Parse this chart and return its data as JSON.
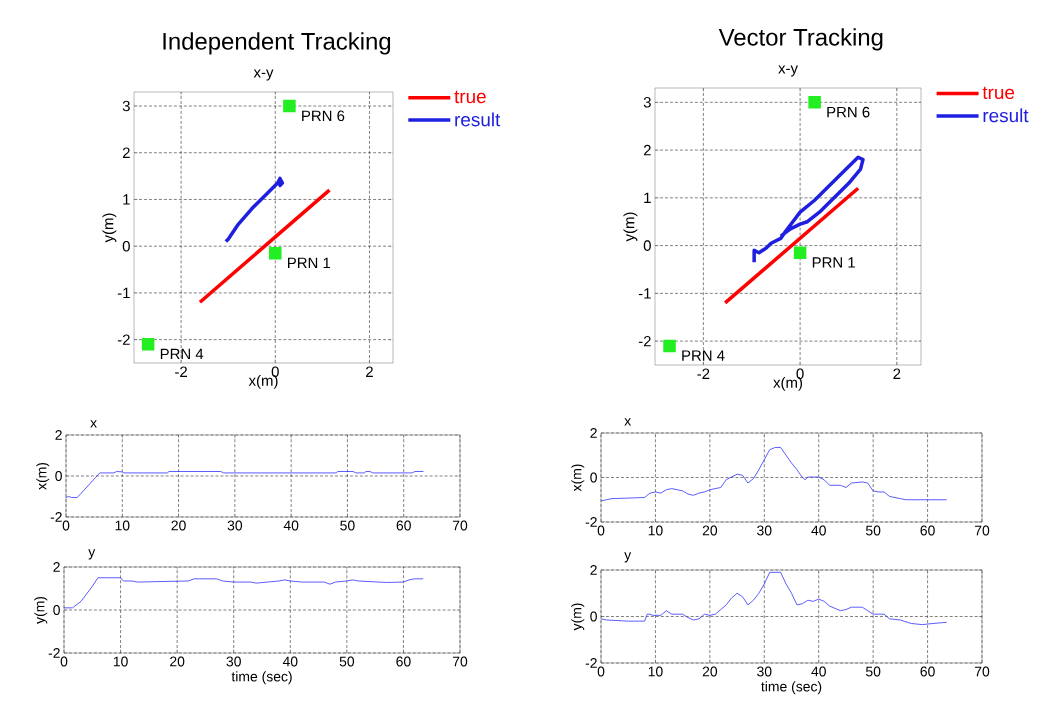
{
  "chart_data": [
    {
      "type": "line",
      "title": "Independent Tracking",
      "subtitle": "x-y",
      "xlabel": "x(m)",
      "ylabel": "y(m)",
      "xlim": [
        -3,
        2.5
      ],
      "ylim": [
        -2.5,
        3.3
      ],
      "xticks": [
        -2,
        0,
        2
      ],
      "yticks": [
        -2,
        -1,
        0,
        1,
        2,
        3
      ],
      "grid": true,
      "legend": "top right",
      "series": [
        {
          "name": "true",
          "type": "line",
          "color": "#ff0000",
          "x": [
            -1.6,
            1.15
          ],
          "values": [
            -1.2,
            1.2
          ]
        },
        {
          "name": "result",
          "type": "line",
          "color": "#1f1fe0",
          "x": [
            -1.05,
            -1.0,
            -0.8,
            -0.5,
            -0.2,
            0.05,
            0.1,
            0.15,
            0.1,
            0.15
          ],
          "values": [
            0.1,
            0.15,
            0.45,
            0.8,
            1.1,
            1.35,
            1.45,
            1.35,
            1.3,
            1.4
          ]
        },
        {
          "type": "scatter",
          "marker": "square",
          "color": "#22ee22",
          "x": [
            0.3,
            0,
            -2.7
          ],
          "values": [
            3.0,
            -0.15,
            -2.1
          ]
        }
      ],
      "annotations": [
        {
          "text": "PRN 6",
          "x": 0.3,
          "y": 3.0
        },
        {
          "text": "PRN 1",
          "x": 0,
          "y": -0.15
        },
        {
          "text": "PRN 4",
          "x": -2.7,
          "y": -2.1
        }
      ]
    },
    {
      "type": "line",
      "title": "Vector Tracking",
      "subtitle": "x-y",
      "xlabel": "x(m)",
      "ylabel": "y(m)",
      "xlim": [
        -3,
        2.5
      ],
      "ylim": [
        -2.5,
        3.3
      ],
      "xticks": [
        -2,
        0,
        2
      ],
      "yticks": [
        -2,
        -1,
        0,
        1,
        2,
        3
      ],
      "grid": true,
      "legend": "top right",
      "series": [
        {
          "name": "true",
          "type": "line",
          "color": "#ff0000",
          "x": [
            -1.55,
            1.2
          ],
          "values": [
            -1.2,
            1.2
          ]
        },
        {
          "name": "result",
          "type": "line",
          "color": "#1f1fe0",
          "x": [
            -0.95,
            -0.95,
            -0.85,
            -0.7,
            -0.6,
            -0.4,
            -0.3,
            -0.15,
            0,
            0.3,
            0.6,
            0.9,
            1.2,
            1.3,
            1.25,
            1.0,
            0.7,
            0.4,
            0.15,
            0,
            -0.2,
            -0.4
          ],
          "values": [
            -0.35,
            -0.1,
            -0.15,
            -0.05,
            0.05,
            0.15,
            0.3,
            0.5,
            0.7,
            0.95,
            1.25,
            1.55,
            1.85,
            1.8,
            1.6,
            1.3,
            1.0,
            0.7,
            0.5,
            0.45,
            0.35,
            0.2
          ]
        },
        {
          "type": "scatter",
          "marker": "square",
          "color": "#22ee22",
          "x": [
            0.3,
            0,
            -2.7
          ],
          "values": [
            3.0,
            -0.15,
            -2.1
          ]
        }
      ],
      "annotations": [
        {
          "text": "PRN 6",
          "x": 0.3,
          "y": 3.0
        },
        {
          "text": "PRN 1",
          "x": 0,
          "y": -0.15
        },
        {
          "text": "PRN 4",
          "x": -2.7,
          "y": -2.1
        }
      ]
    },
    {
      "type": "line",
      "title": "x",
      "ylabel": "x(m)",
      "xlim": [
        0,
        70
      ],
      "ylim": [
        -2,
        2
      ],
      "xticks": [
        0,
        10,
        20,
        30,
        40,
        50,
        60,
        70
      ],
      "yticks": [
        -2,
        0,
        2
      ],
      "grid": true,
      "color": "#3333ff",
      "x": [
        0,
        0.5,
        1,
        2,
        5.5,
        6,
        8.5,
        9,
        10,
        10.3,
        18,
        18.3,
        27.5,
        28,
        48,
        48.3,
        51,
        51.5,
        53,
        53.3,
        54,
        54.5,
        61.5,
        62,
        63.5
      ],
      "values": [
        -1.05,
        -1.0,
        -1.05,
        -1.05,
        0,
        0.15,
        0.15,
        0.22,
        0.2,
        0.15,
        0.15,
        0.22,
        0.22,
        0.15,
        0.15,
        0.22,
        0.22,
        0.15,
        0.15,
        0.22,
        0.22,
        0.15,
        0.15,
        0.22,
        0.22
      ]
    },
    {
      "type": "line",
      "title": "x",
      "ylabel": "x(m)",
      "xlim": [
        0,
        70
      ],
      "ylim": [
        -2,
        2
      ],
      "xticks": [
        0,
        10,
        20,
        30,
        40,
        50,
        60,
        70
      ],
      "yticks": [
        -2,
        0,
        2
      ],
      "grid": true,
      "color": "#3333ff",
      "x": [
        0,
        1,
        2,
        8,
        9,
        10,
        11,
        12,
        13,
        15,
        16,
        17,
        18,
        19,
        20,
        22,
        23,
        25,
        26,
        27,
        28,
        29,
        30,
        31,
        32,
        33,
        34,
        35,
        36,
        37,
        37.5,
        38,
        40,
        41,
        42,
        44,
        45,
        46,
        48,
        49,
        50,
        51,
        52,
        53,
        55,
        56,
        63.5
      ],
      "values": [
        -1.05,
        -1.0,
        -0.95,
        -0.9,
        -0.7,
        -0.65,
        -0.7,
        -0.55,
        -0.5,
        -0.6,
        -0.75,
        -0.8,
        -0.7,
        -0.65,
        -0.55,
        -0.45,
        -0.1,
        0.15,
        0.1,
        -0.25,
        -0.05,
        0.35,
        0.8,
        1.25,
        1.35,
        1.35,
        1.0,
        0.65,
        0.35,
        0,
        -0.1,
        0.02,
        0.02,
        -0.1,
        -0.35,
        -0.35,
        -0.45,
        -0.25,
        -0.2,
        -0.25,
        -0.6,
        -0.65,
        -0.65,
        -0.85,
        -0.95,
        -1.0,
        -1.0
      ]
    },
    {
      "type": "line",
      "title": "y",
      "xlabel": "time (sec)",
      "ylabel": "y(m)",
      "xlim": [
        0,
        70
      ],
      "ylim": [
        -2,
        2
      ],
      "xticks": [
        0,
        10,
        20,
        30,
        40,
        50,
        60,
        70
      ],
      "yticks": [
        -2,
        0,
        2
      ],
      "grid": true,
      "color": "#3333ff",
      "x": [
        0,
        1.5,
        3,
        5,
        6,
        10,
        10.5,
        12,
        13,
        22,
        23,
        27,
        28,
        30,
        33,
        34,
        38,
        39,
        40,
        42,
        46,
        47,
        48,
        50,
        51,
        52,
        57,
        60,
        61,
        62,
        63.5
      ],
      "values": [
        0.1,
        0.1,
        0.4,
        1.1,
        1.5,
        1.5,
        1.35,
        1.35,
        1.3,
        1.35,
        1.45,
        1.45,
        1.35,
        1.3,
        1.3,
        1.25,
        1.35,
        1.4,
        1.35,
        1.3,
        1.3,
        1.2,
        1.3,
        1.35,
        1.4,
        1.35,
        1.28,
        1.3,
        1.4,
        1.45,
        1.45
      ]
    },
    {
      "type": "line",
      "title": "y",
      "xlabel": "time (sec)",
      "ylabel": "y(m)",
      "xlim": [
        0,
        70
      ],
      "ylim": [
        -2,
        2
      ],
      "xticks": [
        0,
        10,
        20,
        30,
        40,
        50,
        60,
        70
      ],
      "yticks": [
        -2,
        0,
        2
      ],
      "grid": true,
      "color": "#3333ff",
      "x": [
        0,
        1,
        5,
        8,
        8.5,
        9,
        9.5,
        11,
        12,
        13,
        15,
        16,
        17,
        18,
        19,
        20,
        21,
        22,
        23,
        24,
        25,
        26,
        27,
        28,
        29,
        30,
        31,
        33,
        34,
        35,
        36,
        37,
        38,
        39,
        40,
        41,
        42,
        43,
        44,
        45,
        46,
        48,
        49,
        50,
        52,
        53,
        55,
        57,
        59,
        61,
        63.5
      ],
      "values": [
        -0.1,
        -0.15,
        -0.2,
        -0.2,
        0.1,
        0.1,
        0.05,
        0.05,
        0.25,
        0.1,
        0.1,
        -0.05,
        -0.15,
        -0.1,
        0.1,
        0.05,
        0.1,
        0.3,
        0.5,
        0.8,
        1.0,
        0.85,
        0.5,
        0.7,
        1.0,
        1.4,
        1.9,
        1.9,
        1.4,
        1.0,
        0.5,
        0.55,
        0.7,
        0.65,
        0.75,
        0.65,
        0.45,
        0.35,
        0.25,
        0.3,
        0.4,
        0.4,
        0.25,
        0.1,
        0.1,
        -0.1,
        -0.15,
        -0.3,
        -0.35,
        -0.3,
        -0.25
      ]
    }
  ]
}
